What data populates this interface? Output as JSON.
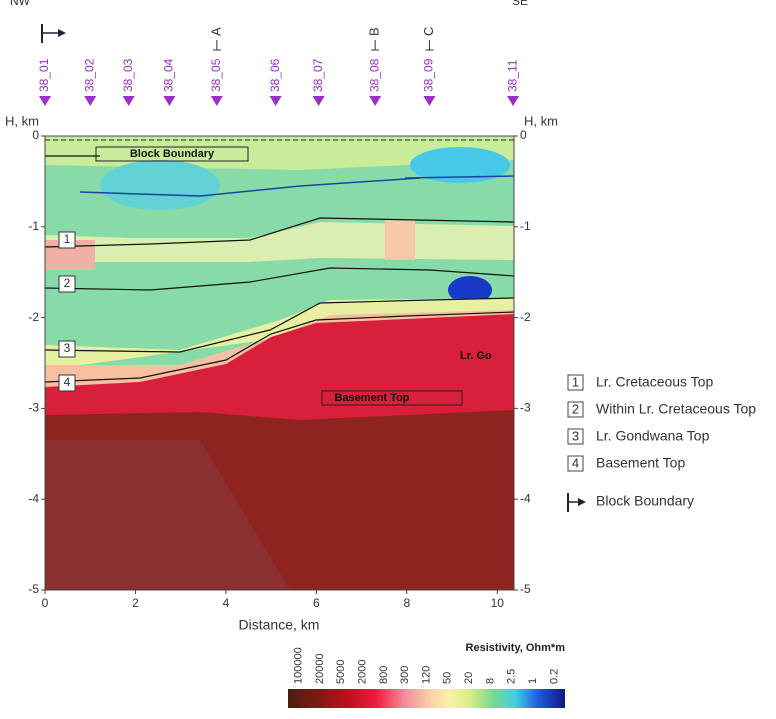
{
  "header": {
    "left": "NW",
    "right": "SE"
  },
  "chart_data": {
    "type": "section",
    "xlabel": "Distance, km",
    "ylabel_left": "H, km",
    "ylabel_right": "H, km",
    "xlim": [
      0,
      10.37
    ],
    "ylim": [
      -5,
      0
    ],
    "xticks": [
      0,
      2,
      4,
      6,
      8,
      10
    ],
    "yticks": [
      0,
      -1,
      -2,
      -3,
      -4,
      -5
    ],
    "stations": {
      "names": [
        "38_01",
        "38_02",
        "38_03",
        "38_04",
        "38_05",
        "38_06",
        "38_07",
        "38_08",
        "38_09",
        "38_11"
      ],
      "x": [
        0,
        1.0,
        1.85,
        2.75,
        3.8,
        5.1,
        6.05,
        7.3,
        8.5,
        10.35
      ]
    },
    "markers": {
      "names": [
        "A",
        "B",
        "C"
      ],
      "x": [
        3.8,
        7.3,
        8.5
      ]
    },
    "horizon_labels": [
      "1",
      "2",
      "3",
      "4"
    ],
    "annotations": [
      "Block Boundary",
      "Basement Top",
      "Lr. Go"
    ],
    "legend": {
      "items": [
        {
          "number": "1",
          "label": "Lr. Cretaceous Top"
        },
        {
          "number": "2",
          "label": "Within Lr. Cretaceous Top"
        },
        {
          "number": "3",
          "label": "Lr. Gondwana Top"
        },
        {
          "number": "4",
          "label": "Basement Top"
        }
      ],
      "boundary": "Block Boundary"
    },
    "colorbar": {
      "title": "Resistivity, Ohm*m",
      "ticks": [
        100000,
        20000,
        5000,
        2000,
        800,
        300,
        120,
        50,
        20,
        8,
        2.5,
        1,
        0.2
      ]
    }
  }
}
